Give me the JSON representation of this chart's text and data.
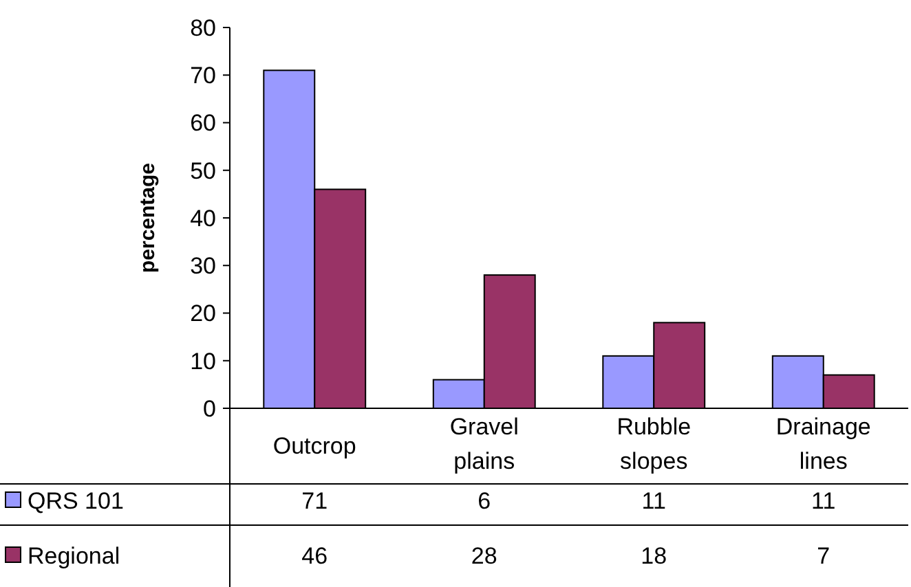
{
  "chart_data": {
    "type": "bar",
    "ylabel": "percentage",
    "categories": [
      "Outcrop",
      "Gravel plains",
      "Rubble slopes",
      "Drainage lines"
    ],
    "series": [
      {
        "name": "QRS 101",
        "color": "#9999ff",
        "values": [
          71,
          6,
          11,
          11
        ]
      },
      {
        "name": "Regional",
        "color": "#993366",
        "values": [
          46,
          28,
          18,
          7
        ]
      }
    ],
    "ylim": [
      0,
      80
    ],
    "yticks": [
      0,
      10,
      20,
      30,
      40,
      50,
      60,
      70,
      80
    ],
    "data_labels": true,
    "legend": "bottom left"
  }
}
